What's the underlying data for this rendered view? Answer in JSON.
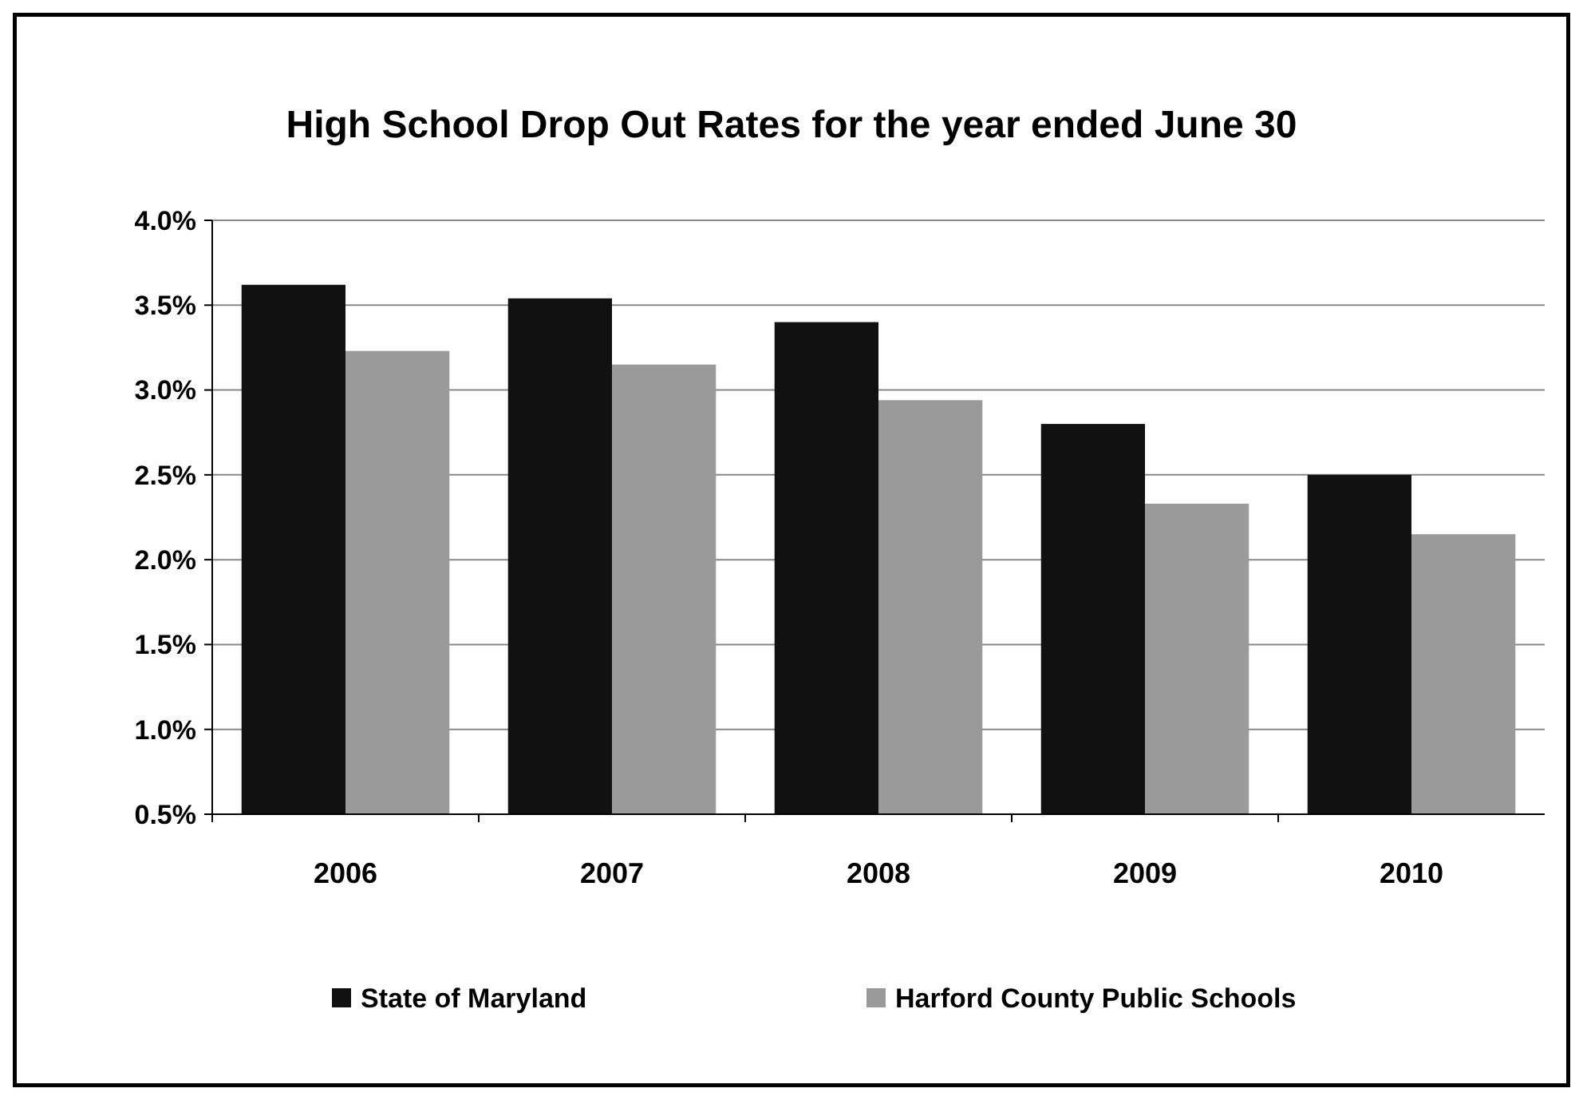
{
  "chart_data": {
    "type": "bar",
    "title": "High School Drop Out Rates for the year ended June 30",
    "categories": [
      "2006",
      "2007",
      "2008",
      "2009",
      "2010"
    ],
    "series": [
      {
        "name": "State of Maryland",
        "color": "#111111",
        "values": [
          3.62,
          3.54,
          3.4,
          2.8,
          2.5
        ]
      },
      {
        "name": "Harford County Public Schools",
        "color": "#9a9a9a",
        "values": [
          3.23,
          3.15,
          2.94,
          2.33,
          2.15
        ]
      }
    ],
    "ylim": [
      0.5,
      4.0
    ],
    "yticks": [
      {
        "value": 0.5,
        "label": "0.5%"
      },
      {
        "value": 1.0,
        "label": "1.0%"
      },
      {
        "value": 1.5,
        "label": "1.5%"
      },
      {
        "value": 2.0,
        "label": "2.0%"
      },
      {
        "value": 2.5,
        "label": "2.5%"
      },
      {
        "value": 3.0,
        "label": "3.0%"
      },
      {
        "value": 3.5,
        "label": "3.5%"
      },
      {
        "value": 4.0,
        "label": "4.0%"
      }
    ],
    "grid": "y",
    "legend": "bottom"
  }
}
